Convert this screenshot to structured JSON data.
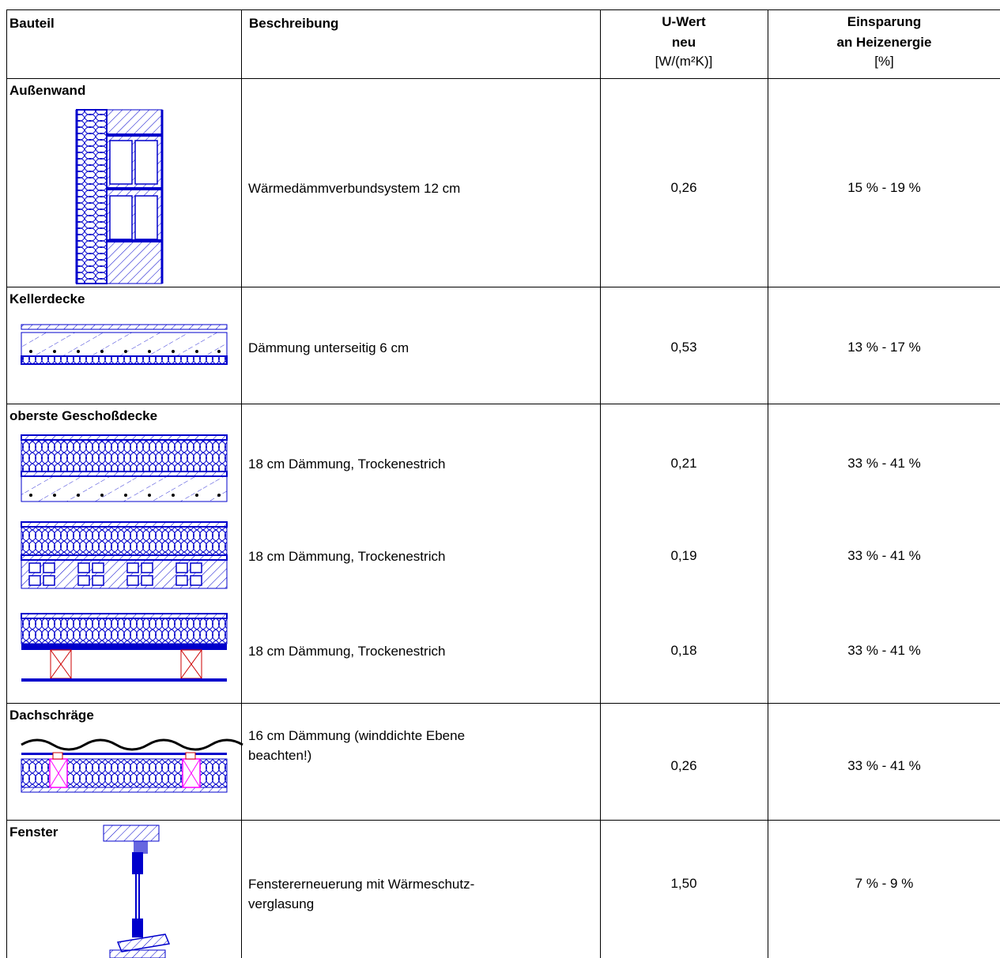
{
  "header": {
    "col1": "Bauteil",
    "col2": "Beschreibung",
    "col3_line1": "U-Wert",
    "col3_line2": "neu",
    "col3_line3": "[W/(m²K)]",
    "col4_line1": "Einsparung",
    "col4_line2": "an Heizenergie",
    "col4_line3": "[%]"
  },
  "sections": {
    "aussenwand": "Außenwand",
    "kellerdecke": "Kellerdecke",
    "geschossdecke": "oberste Geschoßdecke",
    "dachschraege": "Dachschräge",
    "fenster": "Fenster"
  },
  "rows": [
    {
      "desc": "Wärmedämmverbundsystem 12 cm",
      "u": "0,26",
      "save": "15 % - 19 %"
    },
    {
      "desc": "Dämmung unterseitig 6 cm",
      "u": "0,53",
      "save": "13 % - 17 %"
    },
    {
      "desc": "18 cm Dämmung, Trockenestrich",
      "u": "0,21",
      "save": "33 % - 41 %"
    },
    {
      "desc": "18 cm Dämmung, Trockenestrich",
      "u": "0,19",
      "save": "33 % - 41 %"
    },
    {
      "desc": "18 cm Dämmung, Trockenestrich",
      "u": "0,18",
      "save": "33 % - 41 %"
    },
    {
      "desc_line1": "16 cm Dämmung (winddichte Ebene",
      "desc_line2": "beachten!)",
      "u": "0,26",
      "save": "33 % - 41 %"
    },
    {
      "desc_line1": "Fenstererneuerung mit Wärmeschutz-",
      "desc_line2": "verglasung",
      "u": "1,50",
      "save": "7 % - 9 %"
    }
  ],
  "colors": {
    "drawing": "#0000cc",
    "timber": "#ff00ff",
    "timber_red": "#cc0000"
  }
}
